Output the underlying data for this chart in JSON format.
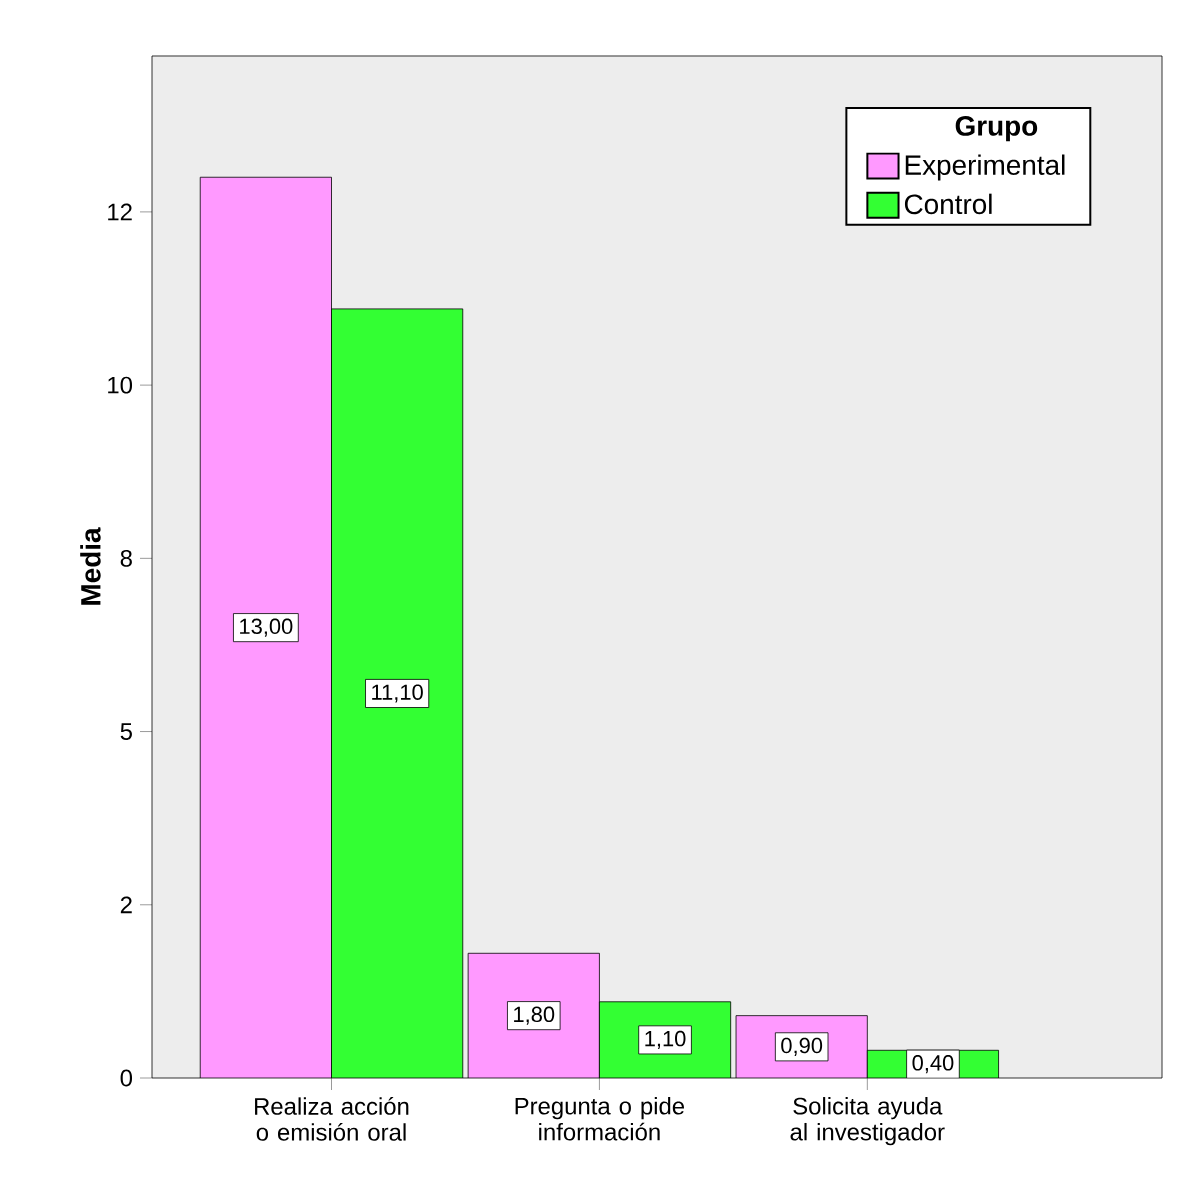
{
  "chart_data": {
    "type": "bar",
    "ylabel": "Media",
    "legend_title": "Grupo",
    "legend": "top right",
    "categories": [
      "Realiza acción o emisión oral",
      "Pregunta o pide información",
      "Solicita ayuda al investigador"
    ],
    "series": [
      {
        "name": "Experimental",
        "color": "#ff99ff",
        "values": [
          13.0,
          1.8,
          0.9
        ],
        "value_labels": [
          "13,00",
          "1,80",
          "0,90"
        ]
      },
      {
        "name": "Control",
        "color": "#33ff33",
        "values": [
          11.1,
          1.1,
          0.4
        ],
        "value_labels": [
          "11,10",
          "1,10",
          "0,40"
        ]
      }
    ],
    "ylim": [
      0,
      14.75
    ],
    "yticks": [
      {
        "value": 0,
        "label": "0"
      },
      {
        "value": 2.5,
        "label": "2"
      },
      {
        "value": 5,
        "label": "5"
      },
      {
        "value": 7.5,
        "label": "8"
      },
      {
        "value": 10,
        "label": "10"
      },
      {
        "value": 12.5,
        "label": "12"
      }
    ],
    "grid": false
  }
}
